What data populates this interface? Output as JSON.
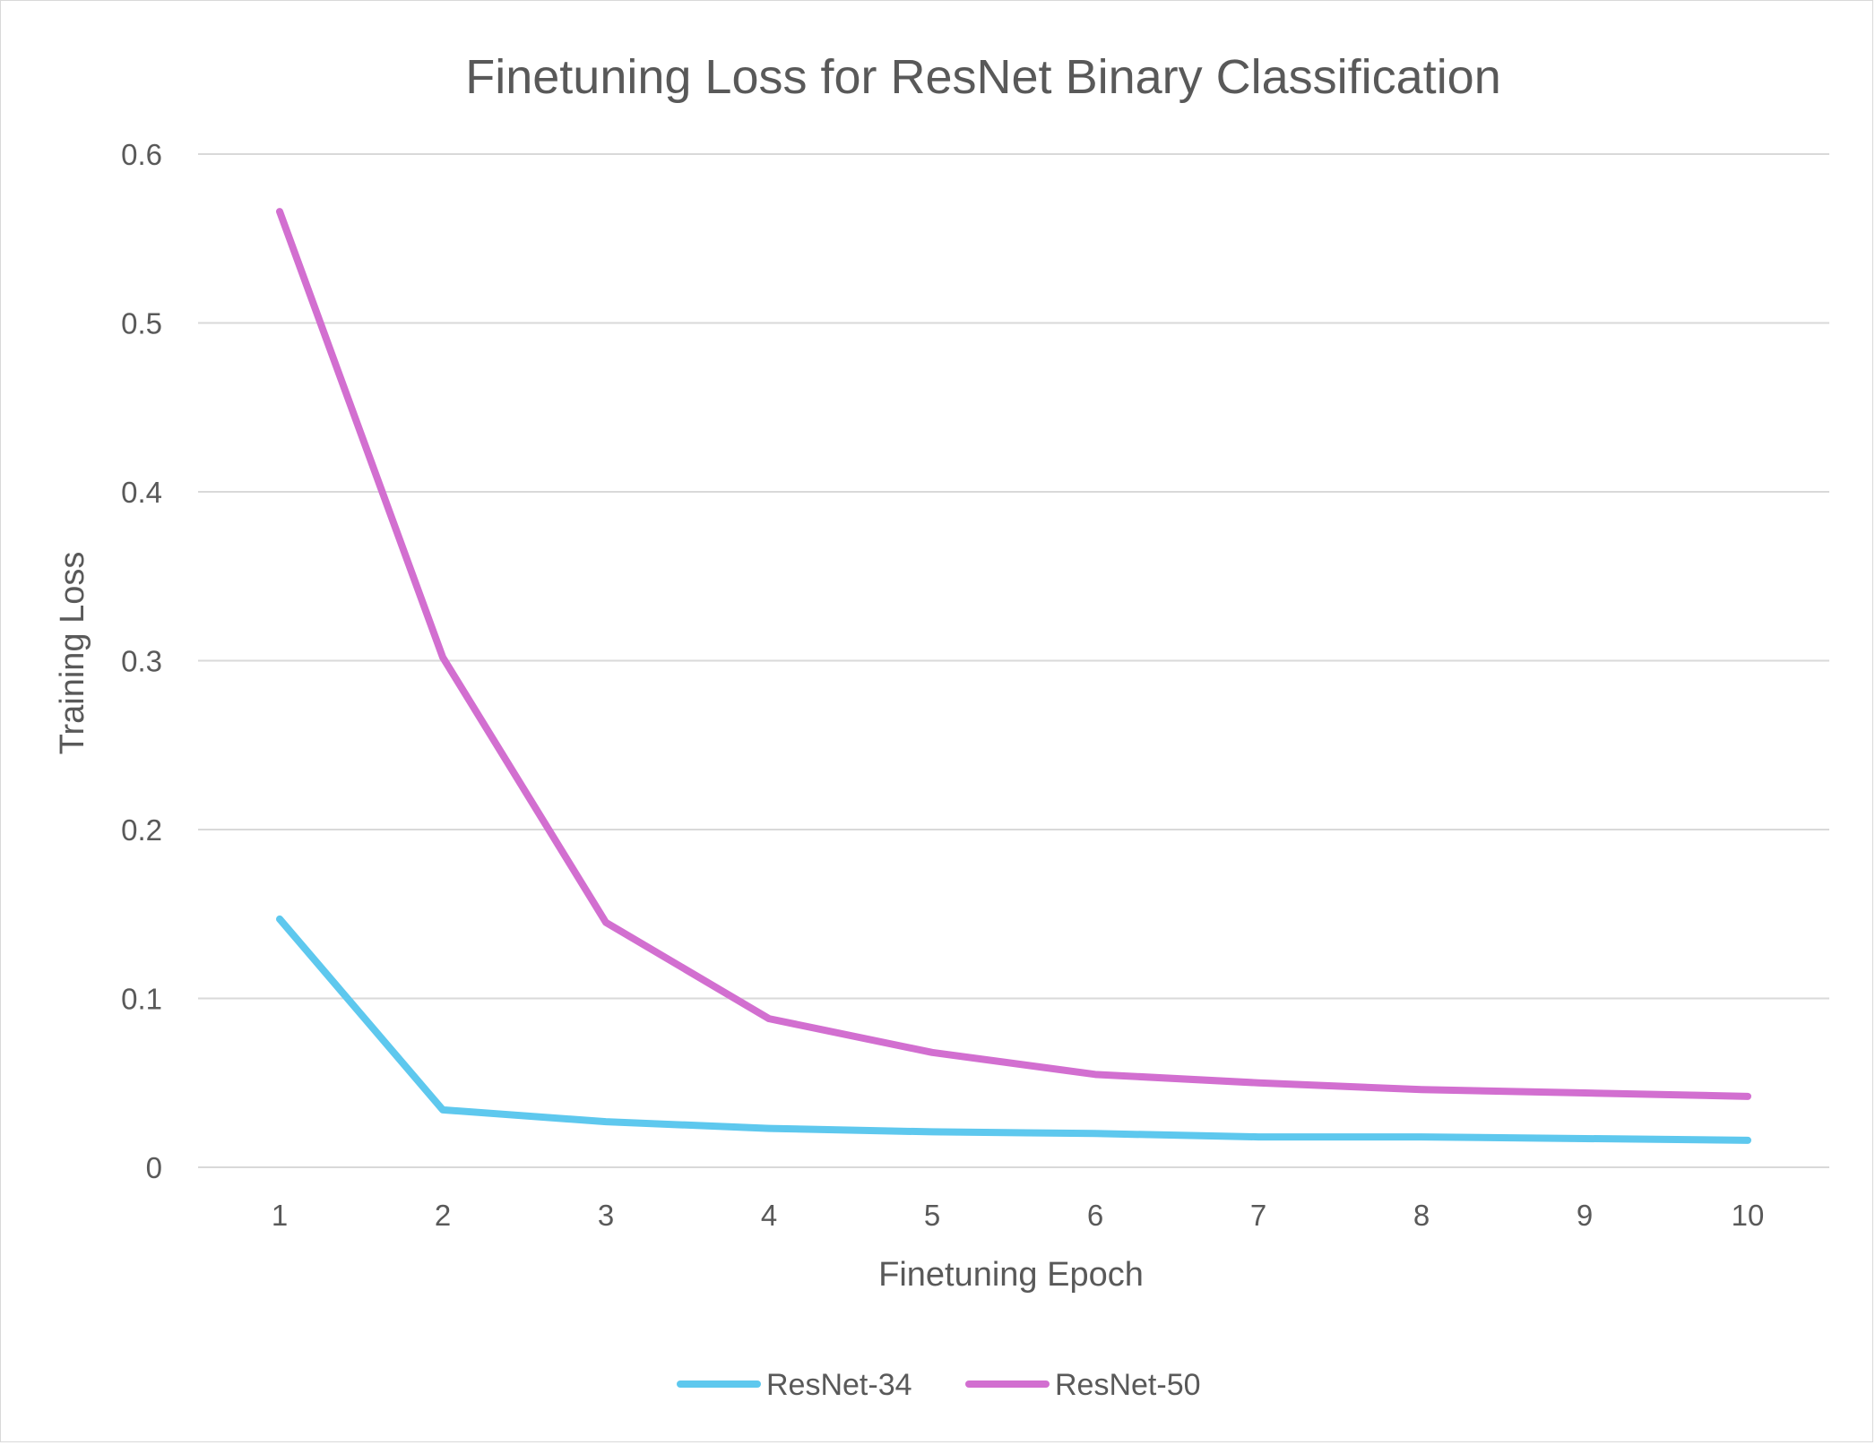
{
  "chart_data": {
    "type": "line",
    "title": "Finetuning Loss for ResNet Binary Classification",
    "xlabel": "Finetuning Epoch",
    "ylabel": "Training Loss",
    "x": [
      1,
      2,
      3,
      4,
      5,
      6,
      7,
      8,
      9,
      10
    ],
    "x_tick_labels": [
      "1",
      "2",
      "3",
      "4",
      "5",
      "6",
      "7",
      "8",
      "9",
      "10"
    ],
    "ylim": [
      0,
      0.6
    ],
    "y_ticks": [
      0,
      0.1,
      0.2,
      0.3,
      0.4,
      0.5,
      0.6
    ],
    "y_tick_labels": [
      "0",
      "0.1",
      "0.2",
      "0.3",
      "0.4",
      "0.5",
      "0.6"
    ],
    "grid": true,
    "legend_position": "bottom",
    "series": [
      {
        "name": "ResNet-34",
        "color": "#5ec8ee",
        "values": [
          0.147,
          0.034,
          0.027,
          0.023,
          0.021,
          0.02,
          0.018,
          0.018,
          0.017,
          0.016
        ]
      },
      {
        "name": "ResNet-50",
        "color": "#d26fd0",
        "values": [
          0.566,
          0.302,
          0.145,
          0.088,
          0.068,
          0.055,
          0.05,
          0.046,
          0.044,
          0.042
        ]
      }
    ]
  }
}
